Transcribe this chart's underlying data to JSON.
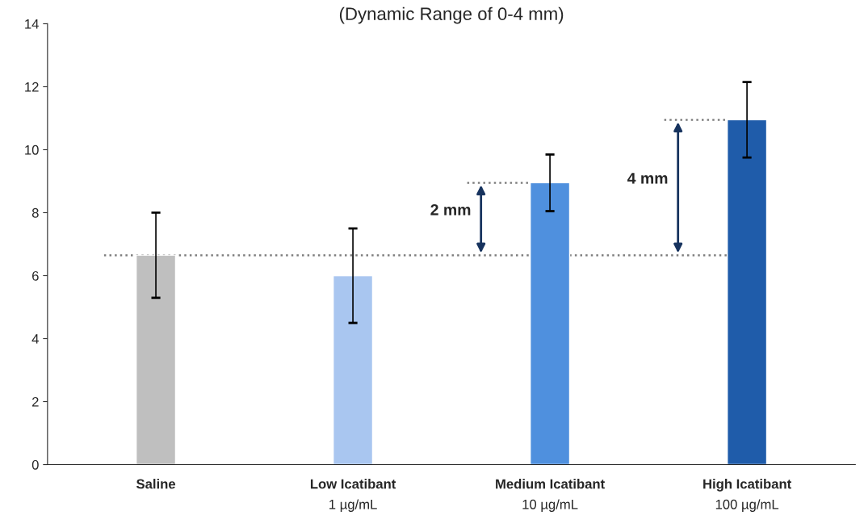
{
  "chart_data": {
    "type": "bar",
    "title": "(Dynamic Range of 0-4 mm)",
    "categories": [
      "Saline",
      "Low Icatibant\n1 µg/mL",
      "Medium Icatibant\n10 µg/mL",
      "High Icatibant\n100 µg/mL"
    ],
    "values": [
      6.65,
      6.0,
      8.95,
      10.95
    ],
    "colors": [
      "#bfbfbf",
      "#a9c6f0",
      "#4f90de",
      "#1f5caa"
    ],
    "errors": [
      1.35,
      1.5,
      0.9,
      1.2
    ],
    "ylim": [
      0,
      14
    ],
    "yticks": [
      0,
      2,
      4,
      6,
      8,
      10,
      12,
      14
    ],
    "grid": false,
    "ref_lines": [
      {
        "axis": "y",
        "value": 6.65,
        "color": "#808080",
        "line_style": "dotted"
      },
      {
        "axis": "y",
        "value": 8.95,
        "color": "#808080",
        "line_style": "dotted"
      },
      {
        "axis": "y",
        "value": 10.95,
        "color": "#808080",
        "line_style": "dotted"
      }
    ],
    "annotations": [
      "2 mm",
      "4 mm"
    ]
  }
}
